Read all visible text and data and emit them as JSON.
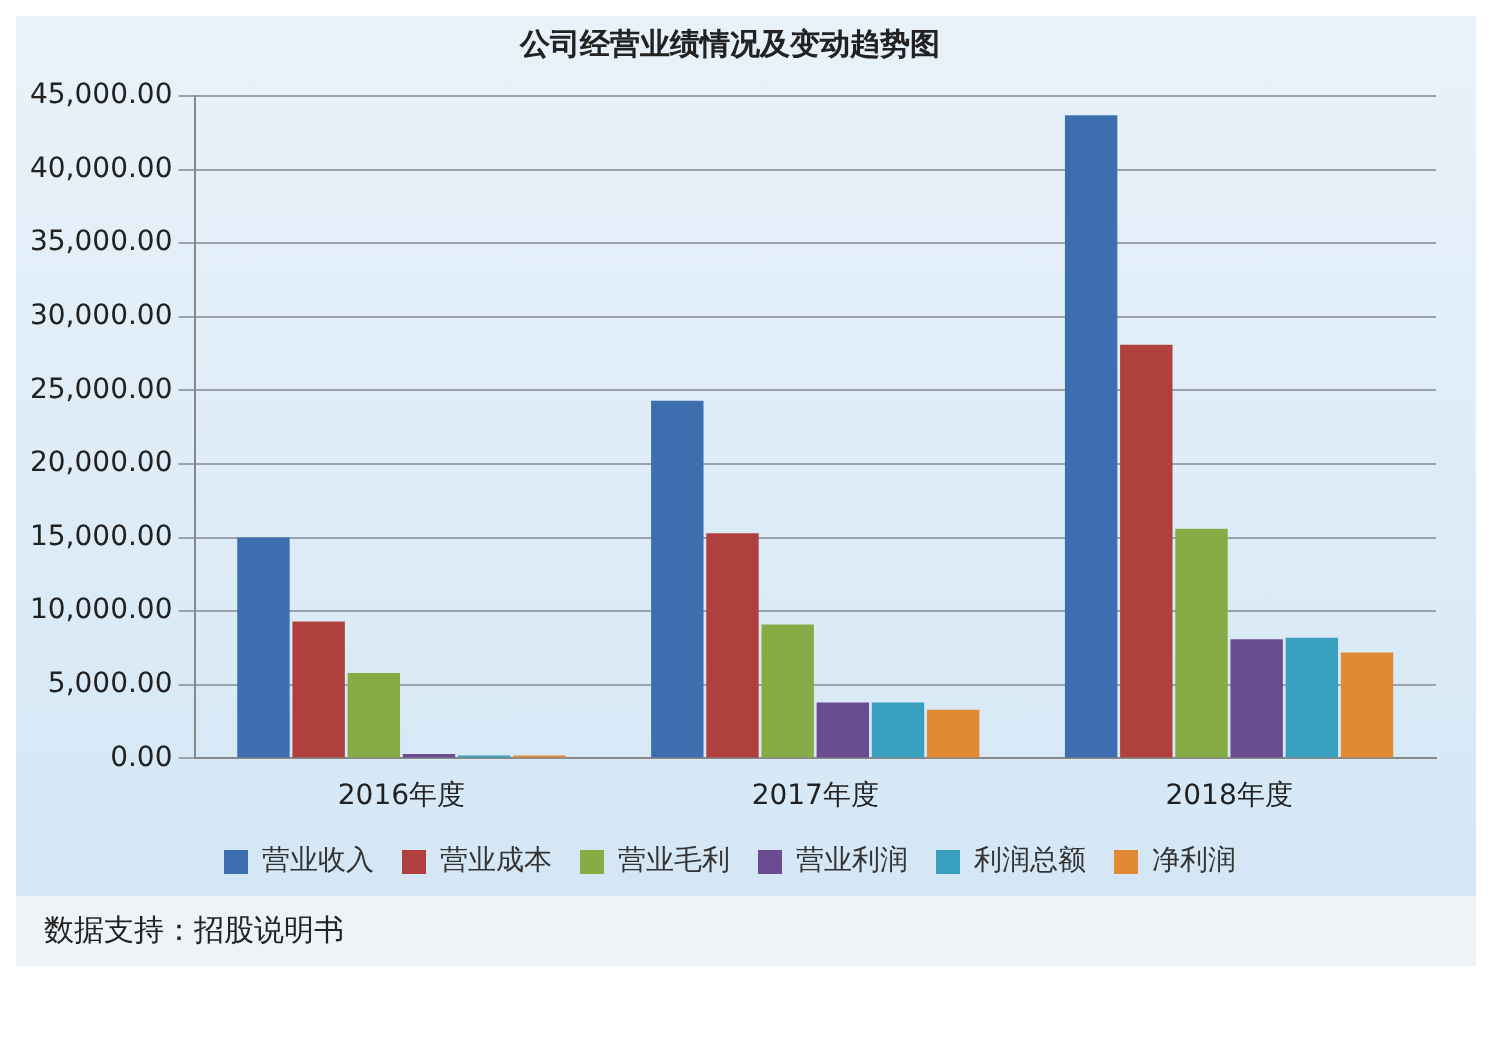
{
  "chart_data": {
    "type": "bar",
    "title": "公司经营业绩情况及变动趋势图",
    "categories": [
      "2016年度",
      "2017年度",
      "2018年度"
    ],
    "series": [
      {
        "name": "营业收入",
        "color": "#3d6fb0",
        "values": [
          15000,
          24300,
          43700
        ]
      },
      {
        "name": "营业成本",
        "color": "#b0403d",
        "values": [
          9300,
          15300,
          28100
        ]
      },
      {
        "name": "营业毛利",
        "color": "#86ac46",
        "values": [
          5800,
          9100,
          15600
        ]
      },
      {
        "name": "营业利润",
        "color": "#6a4c93",
        "values": [
          300,
          3800,
          8100
        ]
      },
      {
        "name": "利润总额",
        "color": "#3aa0bf",
        "values": [
          200,
          3800,
          8200
        ]
      },
      {
        "name": "净利润",
        "color": "#e08a35",
        "values": [
          200,
          3300,
          7200
        ]
      }
    ],
    "ylim": [
      0,
      45000
    ],
    "yticks": [
      {
        "value": 0,
        "label": "0.00"
      },
      {
        "value": 5000,
        "label": "5,000.00"
      },
      {
        "value": 10000,
        "label": "10,000.00"
      },
      {
        "value": 15000,
        "label": "15,000.00"
      },
      {
        "value": 20000,
        "label": "20,000.00"
      },
      {
        "value": 25000,
        "label": "25,000.00"
      },
      {
        "value": 30000,
        "label": "30,000.00"
      },
      {
        "value": 35000,
        "label": "35,000.00"
      },
      {
        "value": 40000,
        "label": "40,000.00"
      },
      {
        "value": 45000,
        "label": "45,000.00"
      }
    ],
    "grid": "y",
    "legend": "bottom",
    "annotations": [
      "数据支持：招股说明书"
    ]
  }
}
